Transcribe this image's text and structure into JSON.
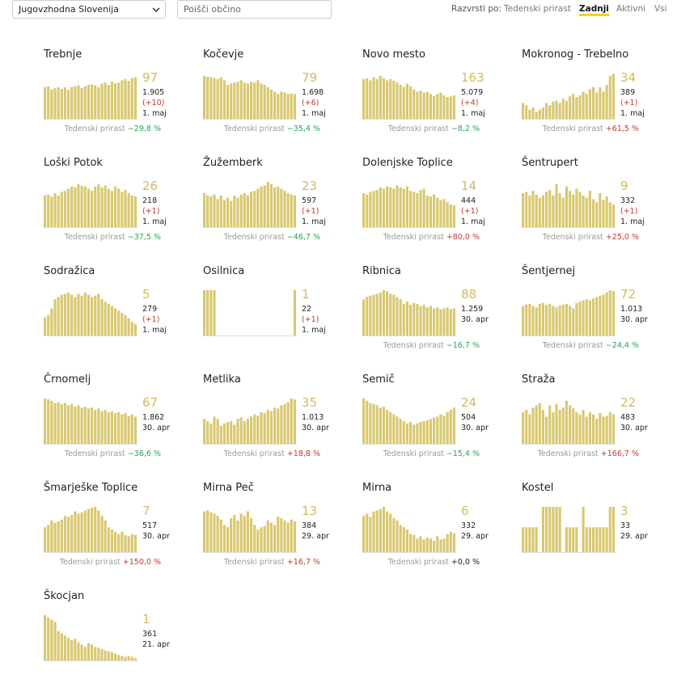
{
  "header": {
    "region": "Jugovzhodna Slovenija",
    "search_placeholder": "Poišči občino",
    "sort_label": "Razvrsti po:",
    "sort_options": [
      "Tedenski prirast",
      "Zadnji",
      "Aktivni",
      "Vsi"
    ],
    "active_sort": 1,
    "growth_label": "Tedenski prirast"
  },
  "bar_color": "#d8c870",
  "cards": [
    {
      "name": "Trebnje",
      "latest": "97",
      "total": "1.905",
      "delta": "(+10)",
      "date": "1. maj",
      "growth": "−29,8 %",
      "growth_color": "#27a35a",
      "bars": [
        70,
        72,
        65,
        68,
        70,
        66,
        70,
        64,
        70,
        72,
        74,
        68,
        72,
        75,
        76,
        74,
        70,
        78,
        80,
        75,
        82,
        78,
        80,
        85,
        88,
        84,
        90,
        92
      ]
    },
    {
      "name": "Kočevje",
      "latest": "79",
      "total": "1.698",
      "delta": "(+6)",
      "date": "1. maj",
      "growth": "−35,4 %",
      "growth_color": "#27a35a",
      "bars": [
        95,
        93,
        92,
        90,
        88,
        92,
        85,
        75,
        78,
        80,
        82,
        85,
        80,
        78,
        82,
        80,
        85,
        78,
        75,
        70,
        65,
        60,
        55,
        60,
        58,
        55,
        56,
        55
      ]
    },
    {
      "name": "Novo mesto",
      "latest": "163",
      "total": "5.079",
      "delta": "(+4)",
      "date": "1. maj",
      "growth": "−8,2 %",
      "growth_color": "#27a35a",
      "bars": [
        88,
        90,
        85,
        92,
        88,
        95,
        90,
        85,
        88,
        84,
        80,
        75,
        70,
        78,
        72,
        65,
        60,
        62,
        58,
        60,
        55,
        50,
        55,
        58,
        52,
        48,
        50,
        52
      ]
    },
    {
      "name": "Mokronog - Trebelno",
      "latest": "34",
      "total": "389",
      "delta": "(+1)",
      "date": "1. maj",
      "growth": "+61,5 %",
      "growth_color": "#c0392b",
      "bars": [
        35,
        30,
        20,
        25,
        15,
        20,
        25,
        35,
        30,
        38,
        40,
        35,
        45,
        40,
        50,
        55,
        48,
        52,
        60,
        55,
        65,
        70,
        58,
        70,
        60,
        75,
        95,
        100
      ]
    },
    {
      "name": "Loški Potok",
      "latest": "26",
      "total": "218",
      "delta": "(+1)",
      "date": "1. maj",
      "growth": "−37,5 %",
      "growth_color": "#27a35a",
      "bars": [
        70,
        72,
        68,
        75,
        70,
        78,
        80,
        85,
        90,
        88,
        95,
        92,
        90,
        85,
        80,
        90,
        95,
        88,
        92,
        85,
        80,
        90,
        85,
        78,
        82,
        75,
        70,
        68
      ]
    },
    {
      "name": "Žužemberk",
      "latest": "23",
      "total": "597",
      "delta": "(+1)",
      "date": "1. maj",
      "growth": "−46,7 %",
      "growth_color": "#27a35a",
      "bars": [
        75,
        70,
        68,
        72,
        62,
        70,
        60,
        65,
        58,
        70,
        65,
        72,
        75,
        70,
        78,
        80,
        85,
        90,
        92,
        100,
        95,
        88,
        90,
        85,
        80,
        75,
        72,
        70
      ]
    },
    {
      "name": "Dolenjske Toplice",
      "latest": "14",
      "total": "444",
      "delta": "(+1)",
      "date": "1. maj",
      "growth": "+80,0 %",
      "growth_color": "#c0392b",
      "bars": [
        75,
        72,
        78,
        80,
        82,
        88,
        85,
        90,
        88,
        85,
        92,
        88,
        85,
        90,
        80,
        78,
        75,
        82,
        85,
        70,
        68,
        72,
        65,
        60,
        62,
        55,
        50,
        48
      ]
    },
    {
      "name": "Šentrupert",
      "latest": "9",
      "total": "332",
      "delta": "(+1)",
      "date": "1. maj",
      "growth": "+25,0 %",
      "growth_color": "#c0392b",
      "bars": [
        75,
        78,
        70,
        80,
        72,
        65,
        70,
        78,
        82,
        70,
        95,
        75,
        65,
        90,
        80,
        72,
        85,
        78,
        70,
        65,
        80,
        62,
        55,
        75,
        60,
        68,
        55,
        50
      ]
    },
    {
      "name": "Sodražica",
      "latest": "5",
      "total": "279",
      "delta": "(+1)",
      "date": "1. maj",
      "bars": [
        40,
        45,
        60,
        80,
        85,
        90,
        92,
        95,
        90,
        85,
        92,
        88,
        95,
        90,
        85,
        88,
        92,
        80,
        75,
        70,
        65,
        60,
        55,
        50,
        45,
        38,
        30,
        25
      ]
    },
    {
      "name": "Osilnica",
      "latest": "1",
      "total": "22",
      "delta": "(+1)",
      "date": "1. maj",
      "bars": [
        100,
        100,
        100,
        100,
        0,
        0,
        0,
        0,
        0,
        0,
        0,
        0,
        0,
        0,
        0,
        0,
        0,
        0,
        0,
        0,
        0,
        0,
        0,
        0,
        0,
        0,
        0,
        100
      ]
    },
    {
      "name": "Ribnica",
      "latest": "88",
      "total": "1.259",
      "date": "30. apr",
      "growth": "−16,7 %",
      "growth_color": "#27a35a",
      "bars": [
        80,
        85,
        88,
        90,
        92,
        95,
        100,
        98,
        92,
        90,
        85,
        80,
        70,
        75,
        68,
        72,
        70,
        65,
        68,
        62,
        65,
        60,
        62,
        58,
        60,
        62,
        58,
        60
      ]
    },
    {
      "name": "Šentjernej",
      "latest": "72",
      "total": "1.013",
      "date": "30. apr",
      "growth": "−24,4 %",
      "growth_color": "#27a35a",
      "bars": [
        65,
        68,
        70,
        65,
        62,
        70,
        72,
        68,
        70,
        65,
        62,
        66,
        68,
        70,
        65,
        60,
        72,
        75,
        78,
        80,
        78,
        82,
        85,
        88,
        90,
        95,
        100,
        98
      ]
    },
    {
      "name": "Črnomelj",
      "latest": "67",
      "total": "1.862",
      "date": "30. apr",
      "growth": "−36,6 %",
      "growth_color": "#27a35a",
      "bars": [
        100,
        98,
        95,
        90,
        92,
        88,
        90,
        85,
        88,
        82,
        85,
        80,
        82,
        78,
        80,
        75,
        78,
        72,
        75,
        70,
        72,
        68,
        70,
        65,
        68,
        62,
        65,
        60
      ]
    },
    {
      "name": "Metlika",
      "latest": "35",
      "total": "1.013",
      "date": "30. apr",
      "growth": "+18,8 %",
      "growth_color": "#c0392b",
      "bars": [
        55,
        50,
        45,
        60,
        55,
        40,
        45,
        48,
        50,
        42,
        55,
        58,
        50,
        55,
        60,
        65,
        62,
        70,
        68,
        75,
        72,
        80,
        78,
        85,
        88,
        92,
        100,
        98
      ]
    },
    {
      "name": "Semič",
      "latest": "24",
      "total": "504",
      "date": "30. apr",
      "growth": "−15,4 %",
      "growth_color": "#27a35a",
      "bars": [
        100,
        95,
        90,
        88,
        85,
        80,
        82,
        75,
        70,
        65,
        60,
        55,
        50,
        45,
        48,
        42,
        45,
        48,
        50,
        52,
        55,
        58,
        60,
        65,
        62,
        70,
        75,
        80
      ]
    },
    {
      "name": "Straža",
      "latest": "22",
      "total": "483",
      "date": "30. apr",
      "growth": "+166,7 %",
      "growth_color": "#c0392b",
      "bars": [
        70,
        75,
        65,
        80,
        85,
        90,
        75,
        60,
        85,
        70,
        88,
        75,
        80,
        95,
        85,
        78,
        70,
        65,
        75,
        60,
        70,
        65,
        55,
        68,
        60,
        62,
        70,
        65
      ]
    },
    {
      "name": "Šmarješke Toplice",
      "latest": "7",
      "total": "517",
      "date": "30. apr",
      "growth": "+150,0 %",
      "growth_color": "#c0392b",
      "bars": [
        55,
        60,
        70,
        65,
        68,
        72,
        80,
        78,
        82,
        90,
        85,
        88,
        92,
        95,
        98,
        100,
        92,
        80,
        70,
        55,
        50,
        45,
        40,
        45,
        38,
        35,
        40,
        38
      ]
    },
    {
      "name": "Mirna Peč",
      "latest": "13",
      "total": "384",
      "date": "29. apr",
      "growth": "+16,7 %",
      "growth_color": "#c0392b",
      "bars": [
        90,
        92,
        88,
        85,
        80,
        72,
        60,
        55,
        75,
        82,
        70,
        85,
        80,
        90,
        75,
        60,
        50,
        55,
        58,
        70,
        65,
        60,
        78,
        75,
        70,
        65,
        72,
        68
      ]
    },
    {
      "name": "Mirna",
      "latest": "6",
      "total": "332",
      "date": "29. apr",
      "growth": "+0,0 %",
      "growth_color": "#222222",
      "bars": [
        80,
        85,
        78,
        90,
        92,
        95,
        100,
        90,
        85,
        75,
        70,
        60,
        55,
        50,
        40,
        38,
        30,
        35,
        28,
        32,
        30,
        25,
        35,
        28,
        30,
        40,
        45,
        42
      ]
    },
    {
      "name": "Kostel",
      "latest": "3",
      "total": "33",
      "date": "29. apr",
      "bars": [
        55,
        55,
        55,
        55,
        55,
        0,
        100,
        100,
        100,
        100,
        100,
        100,
        0,
        55,
        55,
        55,
        55,
        0,
        100,
        55,
        55,
        55,
        55,
        55,
        55,
        55,
        100,
        100
      ]
    },
    {
      "name": "Škocjan",
      "latest": "1",
      "total": "361",
      "date": "21. apr",
      "bars": [
        100,
        95,
        90,
        85,
        65,
        60,
        55,
        50,
        45,
        48,
        40,
        35,
        30,
        38,
        35,
        30,
        28,
        25,
        22,
        20,
        18,
        15,
        12,
        10,
        8,
        10,
        8,
        5
      ]
    }
  ]
}
